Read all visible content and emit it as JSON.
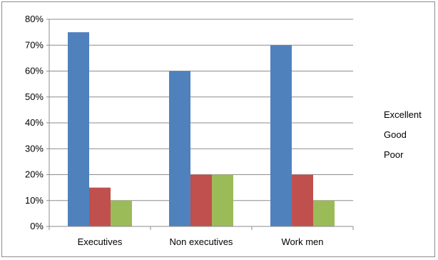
{
  "chart_data": {
    "type": "bar",
    "title": "",
    "xlabel": "",
    "ylabel": "",
    "categories": [
      "Executives",
      "Non executives",
      "Work men"
    ],
    "series": [
      {
        "name": "Excellent",
        "color": "#4f81bd",
        "values": [
          75,
          60,
          70
        ]
      },
      {
        "name": "Good",
        "color": "#c0504d",
        "values": [
          15,
          20,
          20
        ]
      },
      {
        "name": "Poor",
        "color": "#9bbb59",
        "values": [
          10,
          20,
          10
        ]
      }
    ],
    "ylim": [
      0,
      80
    ],
    "yticks": [
      0,
      10,
      20,
      30,
      40,
      50,
      60,
      70,
      80
    ],
    "ytick_suffix": "%",
    "grid": true,
    "legend_position": "right",
    "legend_show_swatches": false
  }
}
